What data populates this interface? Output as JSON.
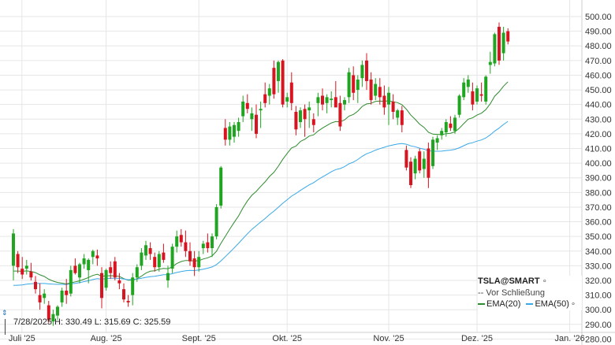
{
  "chart_data": {
    "type": "candlestick",
    "ylim": [
      277,
      507
    ],
    "y_ticks": [
      280,
      290,
      300,
      310,
      320,
      330,
      340,
      350,
      360,
      370,
      380,
      390,
      400,
      410,
      420,
      430,
      440,
      450,
      460,
      470,
      480,
      490,
      500
    ],
    "y_tick_labels": [
      "280.00",
      "290.00",
      "300.00",
      "310.00",
      "320.00",
      "330.00",
      "340.00",
      "350.00",
      "360.00",
      "370.00",
      "380.00",
      "390.00",
      "400.00",
      "410.00",
      "420.00",
      "430.00",
      "440.00",
      "450.00",
      "460.00",
      "470.00",
      "480.00",
      "490.00",
      "500.00"
    ],
    "x_ticks": [
      {
        "label": "Juli '25",
        "index": -2
      },
      {
        "label": "Aug. '25",
        "index": 21
      },
      {
        "label": "Sept. '25",
        "index": 42
      },
      {
        "label": "Okt. '25",
        "index": 62
      },
      {
        "label": "Nov. '25",
        "index": 85
      },
      {
        "label": "Dez. '25",
        "index": 105
      },
      {
        "label": "Jan. '26",
        "index": 126
      }
    ],
    "candles": [
      {
        "o": 330,
        "h": 355,
        "l": 320,
        "c": 352
      },
      {
        "o": 338,
        "h": 340,
        "l": 325,
        "c": 329
      },
      {
        "o": 328,
        "h": 336,
        "l": 321,
        "c": 324
      },
      {
        "o": 328,
        "h": 334,
        "l": 324,
        "c": 330
      },
      {
        "o": 326,
        "h": 332,
        "l": 320,
        "c": 322
      },
      {
        "o": 319,
        "h": 323,
        "l": 311,
        "c": 314
      },
      {
        "o": 310,
        "h": 318,
        "l": 300,
        "c": 305
      },
      {
        "o": 308,
        "h": 314,
        "l": 304,
        "c": 311
      },
      {
        "o": 303,
        "h": 306,
        "l": 291,
        "c": 293
      },
      {
        "o": 292,
        "h": 300,
        "l": 289,
        "c": 297
      },
      {
        "o": 296,
        "h": 303,
        "l": 293,
        "c": 302
      },
      {
        "o": 305,
        "h": 315,
        "l": 302,
        "c": 313
      },
      {
        "o": 313,
        "h": 321,
        "l": 304,
        "c": 310
      },
      {
        "o": 311,
        "h": 330,
        "l": 309,
        "c": 327
      },
      {
        "o": 330,
        "h": 335,
        "l": 324,
        "c": 325
      },
      {
        "o": 322,
        "h": 332,
        "l": 318,
        "c": 331
      },
      {
        "o": 331,
        "h": 338,
        "l": 328,
        "c": 335
      },
      {
        "o": 327,
        "h": 335,
        "l": 318,
        "c": 334
      },
      {
        "o": 336,
        "h": 341,
        "l": 331,
        "c": 340
      },
      {
        "o": 337,
        "h": 341,
        "l": 330,
        "c": 335
      },
      {
        "o": 325,
        "h": 329,
        "l": 301,
        "c": 308
      },
      {
        "o": 315,
        "h": 328,
        "l": 313,
        "c": 327
      },
      {
        "o": 329,
        "h": 333,
        "l": 321,
        "c": 325
      },
      {
        "o": 333,
        "h": 336,
        "l": 320,
        "c": 322
      },
      {
        "o": 320,
        "h": 325,
        "l": 314,
        "c": 318
      },
      {
        "o": 314,
        "h": 318,
        "l": 305,
        "c": 307
      },
      {
        "o": 306,
        "h": 310,
        "l": 302,
        "c": 305
      },
      {
        "o": 310,
        "h": 325,
        "l": 303,
        "c": 322
      },
      {
        "o": 322,
        "h": 331,
        "l": 319,
        "c": 329
      },
      {
        "o": 330,
        "h": 342,
        "l": 327,
        "c": 339
      },
      {
        "o": 337,
        "h": 347,
        "l": 334,
        "c": 344
      },
      {
        "o": 342,
        "h": 346,
        "l": 334,
        "c": 338
      },
      {
        "o": 336,
        "h": 339,
        "l": 326,
        "c": 329
      },
      {
        "o": 329,
        "h": 340,
        "l": 326,
        "c": 338
      },
      {
        "o": 339,
        "h": 345,
        "l": 332,
        "c": 334
      },
      {
        "o": 320,
        "h": 330,
        "l": 315,
        "c": 325
      },
      {
        "o": 328,
        "h": 345,
        "l": 325,
        "c": 343
      },
      {
        "o": 343,
        "h": 354,
        "l": 339,
        "c": 350
      },
      {
        "o": 351,
        "h": 355,
        "l": 343,
        "c": 346
      },
      {
        "o": 346,
        "h": 354,
        "l": 336,
        "c": 340
      },
      {
        "o": 340,
        "h": 346,
        "l": 330,
        "c": 333
      },
      {
        "o": 335,
        "h": 340,
        "l": 323,
        "c": 329
      },
      {
        "o": 329,
        "h": 340,
        "l": 326,
        "c": 336
      },
      {
        "o": 342,
        "h": 347,
        "l": 338,
        "c": 345
      },
      {
        "o": 346,
        "h": 352,
        "l": 339,
        "c": 342
      },
      {
        "o": 342,
        "h": 352,
        "l": 336,
        "c": 350
      },
      {
        "o": 350,
        "h": 372,
        "l": 348,
        "c": 370
      },
      {
        "o": 371,
        "h": 398,
        "l": 369,
        "c": 397
      },
      {
        "o": 424,
        "h": 430,
        "l": 412,
        "c": 416
      },
      {
        "o": 416,
        "h": 428,
        "l": 412,
        "c": 425
      },
      {
        "o": 418,
        "h": 428,
        "l": 414,
        "c": 426
      },
      {
        "o": 422,
        "h": 431,
        "l": 418,
        "c": 428
      },
      {
        "o": 432,
        "h": 446,
        "l": 428,
        "c": 442
      },
      {
        "o": 441,
        "h": 447,
        "l": 434,
        "c": 437
      },
      {
        "o": 430,
        "h": 438,
        "l": 422,
        "c": 434
      },
      {
        "o": 433,
        "h": 440,
        "l": 417,
        "c": 420
      },
      {
        "o": 436,
        "h": 442,
        "l": 424,
        "c": 437
      },
      {
        "o": 447,
        "h": 455,
        "l": 438,
        "c": 441
      },
      {
        "o": 446,
        "h": 454,
        "l": 440,
        "c": 451
      },
      {
        "o": 465,
        "h": 470,
        "l": 444,
        "c": 447
      },
      {
        "o": 456,
        "h": 470,
        "l": 448,
        "c": 469
      },
      {
        "o": 470,
        "h": 471,
        "l": 438,
        "c": 440
      },
      {
        "o": 442,
        "h": 448,
        "l": 438,
        "c": 445
      },
      {
        "o": 455,
        "h": 462,
        "l": 436,
        "c": 441
      },
      {
        "o": 435,
        "h": 439,
        "l": 419,
        "c": 423
      },
      {
        "o": 428,
        "h": 438,
        "l": 424,
        "c": 436
      },
      {
        "o": 437,
        "h": 440,
        "l": 418,
        "c": 430
      },
      {
        "o": 436,
        "h": 442,
        "l": 424,
        "c": 438
      },
      {
        "o": 430,
        "h": 434,
        "l": 421,
        "c": 426
      },
      {
        "o": 441,
        "h": 448,
        "l": 432,
        "c": 445
      },
      {
        "o": 446,
        "h": 451,
        "l": 436,
        "c": 440
      },
      {
        "o": 441,
        "h": 447,
        "l": 434,
        "c": 445
      },
      {
        "o": 443,
        "h": 449,
        "l": 438,
        "c": 444
      },
      {
        "o": 445,
        "h": 456,
        "l": 440,
        "c": 438
      },
      {
        "o": 441,
        "h": 446,
        "l": 422,
        "c": 425
      },
      {
        "o": 440,
        "h": 445,
        "l": 436,
        "c": 443
      },
      {
        "o": 445,
        "h": 465,
        "l": 441,
        "c": 462
      },
      {
        "o": 460,
        "h": 466,
        "l": 443,
        "c": 448
      },
      {
        "o": 450,
        "h": 460,
        "l": 441,
        "c": 457
      },
      {
        "o": 458,
        "h": 470,
        "l": 452,
        "c": 467
      },
      {
        "o": 470,
        "h": 475,
        "l": 450,
        "c": 456
      },
      {
        "o": 457,
        "h": 462,
        "l": 440,
        "c": 443
      },
      {
        "o": 446,
        "h": 458,
        "l": 443,
        "c": 454
      },
      {
        "o": 452,
        "h": 458,
        "l": 440,
        "c": 445
      },
      {
        "o": 446,
        "h": 453,
        "l": 433,
        "c": 438
      },
      {
        "o": 440,
        "h": 452,
        "l": 426,
        "c": 448
      },
      {
        "o": 442,
        "h": 447,
        "l": 430,
        "c": 435
      },
      {
        "o": 431,
        "h": 437,
        "l": 426,
        "c": 436
      },
      {
        "o": 436,
        "h": 439,
        "l": 421,
        "c": 426
      },
      {
        "o": 409,
        "h": 412,
        "l": 395,
        "c": 397
      },
      {
        "o": 401,
        "h": 404,
        "l": 383,
        "c": 385
      },
      {
        "o": 393,
        "h": 405,
        "l": 389,
        "c": 403
      },
      {
        "o": 408,
        "h": 410,
        "l": 393,
        "c": 395
      },
      {
        "o": 396,
        "h": 408,
        "l": 390,
        "c": 403
      },
      {
        "o": 410,
        "h": 414,
        "l": 383,
        "c": 390
      },
      {
        "o": 398,
        "h": 418,
        "l": 396,
        "c": 416
      },
      {
        "o": 414,
        "h": 419,
        "l": 409,
        "c": 417
      },
      {
        "o": 419,
        "h": 424,
        "l": 416,
        "c": 422
      },
      {
        "o": 421,
        "h": 430,
        "l": 418,
        "c": 428
      },
      {
        "o": 427,
        "h": 432,
        "l": 422,
        "c": 424
      },
      {
        "o": 422,
        "h": 433,
        "l": 420,
        "c": 431
      },
      {
        "o": 433,
        "h": 447,
        "l": 431,
        "c": 446
      },
      {
        "o": 445,
        "h": 458,
        "l": 443,
        "c": 455
      },
      {
        "o": 452,
        "h": 460,
        "l": 448,
        "c": 457
      },
      {
        "o": 449,
        "h": 455,
        "l": 436,
        "c": 440
      },
      {
        "o": 442,
        "h": 453,
        "l": 440,
        "c": 451
      },
      {
        "o": 447,
        "h": 455,
        "l": 442,
        "c": 446
      },
      {
        "o": 442,
        "h": 460,
        "l": 440,
        "c": 459
      },
      {
        "o": 467,
        "h": 476,
        "l": 461,
        "c": 469
      },
      {
        "o": 468,
        "h": 489,
        "l": 466,
        "c": 488
      },
      {
        "o": 493,
        "h": 496,
        "l": 467,
        "c": 470
      },
      {
        "o": 475,
        "h": 493,
        "l": 470,
        "c": 489
      },
      {
        "o": 490,
        "h": 492,
        "l": 481,
        "c": 483
      }
    ],
    "series": [
      {
        "name": "EMA(20)",
        "color": "#2e8b2e",
        "values": [
          326.4,
          326.4,
          326.2,
          326.5,
          326.1,
          325.3,
          323.8,
          322.7,
          320.8,
          319.5,
          318.6,
          318.1,
          317.6,
          318.3,
          319,
          319.7,
          320.8,
          322,
          323.4,
          324.2,
          322.9,
          323.1,
          323.2,
          323.1,
          322.7,
          321.2,
          320.1,
          320.2,
          321.1,
          322.9,
          325,
          326.3,
          326.6,
          327.6,
          328.2,
          327.9,
          329.3,
          331.5,
          332.9,
          333.6,
          333.6,
          333.2,
          333.5,
          334.6,
          335.4,
          336.7,
          339.9,
          345.3,
          350.1,
          355,
          359.6,
          364,
          369.5,
          374.2,
          378.1,
          380.7,
          384.1,
          387.2,
          390.9,
          393.7,
          397.9,
          402.6,
          406.6,
          410.4,
          411.6,
          414.8,
          416.3,
          418.5,
          419.3,
          421.9,
          423.9,
          425.7,
          427.4,
          428.4,
          428.1,
          429.5,
          432.1,
          433.2,
          435.5,
          438.7,
          440.4,
          440.8,
          442.1,
          442.4,
          442.1,
          442.6,
          441.8,
          441.3,
          439.9,
          436.8,
          432.8,
          429.9,
          426.6,
          424.4,
          421,
          419.8,
          419.6,
          419.4,
          420.1,
          420.4,
          421.4,
          423.8,
          427,
          430,
          430.9,
          432.8,
          434.1,
          436.5,
          440.5,
          445.7,
          448.7,
          452.5,
          455.5
        ]
      },
      {
        "name": "EMA(50)",
        "color": "#38a8e8",
        "values": [
          316.6,
          316.7,
          316.9,
          317.4,
          317.7,
          317.9,
          317.9,
          317.9,
          317.6,
          317.4,
          317.3,
          317.3,
          317.2,
          317.7,
          318,
          318.5,
          319.2,
          319.8,
          320.6,
          321.2,
          320.8,
          321.3,
          321.5,
          321.5,
          321.4,
          320.9,
          320.5,
          320.6,
          320.9,
          321.5,
          322.1,
          322.5,
          322.8,
          323.4,
          323.9,
          323.9,
          324.6,
          325.4,
          326,
          326.6,
          326.8,
          326.7,
          327.1,
          327.7,
          328.3,
          329.2,
          330.8,
          333.3,
          336.2,
          339.1,
          342.2,
          345.3,
          348.6,
          351.8,
          354.8,
          357.3,
          359.8,
          362.2,
          364.9,
          367.2,
          369.9,
          372.6,
          375,
          377.5,
          379.3,
          381.4,
          383.3,
          385.2,
          386.7,
          388.8,
          390.6,
          392.3,
          394.1,
          395.6,
          396.3,
          397.6,
          399.5,
          400.7,
          402.5,
          404.7,
          406.4,
          407.5,
          408.9,
          409.9,
          410.8,
          411.8,
          412.4,
          413,
          413.4,
          412.9,
          411.8,
          411.2,
          410.2,
          409.5,
          408.5,
          408.1,
          408.1,
          408.2,
          408.6,
          408.9,
          409.4,
          410.5,
          411.9,
          413.3,
          413.9,
          415,
          415.8,
          417.2,
          419.3,
          421.9,
          423.9,
          426.4,
          428.5
        ]
      }
    ]
  },
  "info_line": {
    "text": "7/28/2025 H: 330.49 L: 315.69 C: 325.59"
  },
  "legend": {
    "title": "TSLA@SMART",
    "title_marker": "∘",
    "prior_close_label": "-- Vor Schließung",
    "ema20_label": "EMA(20)",
    "ema50_label": "EMA(50)",
    "ema50_marker": "∘"
  },
  "colors": {
    "up": "#1fa51f",
    "down": "#d7141f",
    "grid": "#e6e6e6",
    "ema20": "#2e8b2e",
    "ema50": "#38a8e8"
  }
}
